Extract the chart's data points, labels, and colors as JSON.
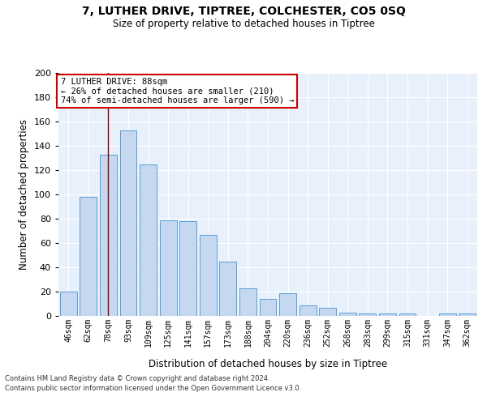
{
  "title": "7, LUTHER DRIVE, TIPTREE, COLCHESTER, CO5 0SQ",
  "subtitle": "Size of property relative to detached houses in Tiptree",
  "xlabel": "Distribution of detached houses by size in Tiptree",
  "ylabel": "Number of detached properties",
  "categories": [
    "46sqm",
    "62sqm",
    "78sqm",
    "93sqm",
    "109sqm",
    "125sqm",
    "141sqm",
    "157sqm",
    "173sqm",
    "188sqm",
    "204sqm",
    "220sqm",
    "236sqm",
    "252sqm",
    "268sqm",
    "283sqm",
    "299sqm",
    "315sqm",
    "331sqm",
    "347sqm",
    "362sqm"
  ],
  "values": [
    20,
    98,
    133,
    153,
    125,
    79,
    78,
    67,
    45,
    23,
    14,
    19,
    9,
    7,
    3,
    2,
    2,
    2,
    0,
    2,
    2
  ],
  "bar_color": "#c5d8f0",
  "bar_edge_color": "#5a9fd4",
  "vline_x": 2.0,
  "vline_color": "#8b0000",
  "annotation_text": "7 LUTHER DRIVE: 88sqm\n← 26% of detached houses are smaller (210)\n74% of semi-detached houses are larger (590) →",
  "annotation_box_color": "#ffffff",
  "annotation_box_edge": "#cc0000",
  "ylim": [
    0,
    200
  ],
  "yticks": [
    0,
    20,
    40,
    60,
    80,
    100,
    120,
    140,
    160,
    180,
    200
  ],
  "background_color": "#e8f0fb",
  "footer_line1": "Contains HM Land Registry data © Crown copyright and database right 2024.",
  "footer_line2": "Contains public sector information licensed under the Open Government Licence v3.0."
}
